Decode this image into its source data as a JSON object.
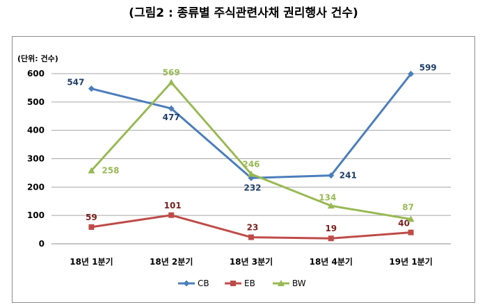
{
  "title": "(그림2 : 종류별 주식관련사채 권리행사 건수)",
  "chart_data": {
    "type": "line",
    "title": "(그림2 : 종류별 주식관련사채 권리행사 건수)",
    "unit_label": "(단위: 건수)",
    "categories": [
      "18년 1분기",
      "18년 2분기",
      "18년 3분기",
      "18년 4분기",
      "19년 1분기"
    ],
    "ylim": [
      0,
      600
    ],
    "yticks": [
      0,
      100,
      200,
      300,
      400,
      500,
      600
    ],
    "grid": true,
    "legend_position": "bottom",
    "series": [
      {
        "name": "CB",
        "values": [
          547,
          477,
          232,
          241,
          599
        ],
        "color": "#4a7ebb",
        "marker": "diamond"
      },
      {
        "name": "EB",
        "values": [
          59,
          101,
          23,
          19,
          40
        ],
        "color": "#be4b48",
        "marker": "square"
      },
      {
        "name": "BW",
        "values": [
          258,
          569,
          246,
          134,
          87
        ],
        "color": "#98b954",
        "marker": "triangle"
      }
    ]
  }
}
